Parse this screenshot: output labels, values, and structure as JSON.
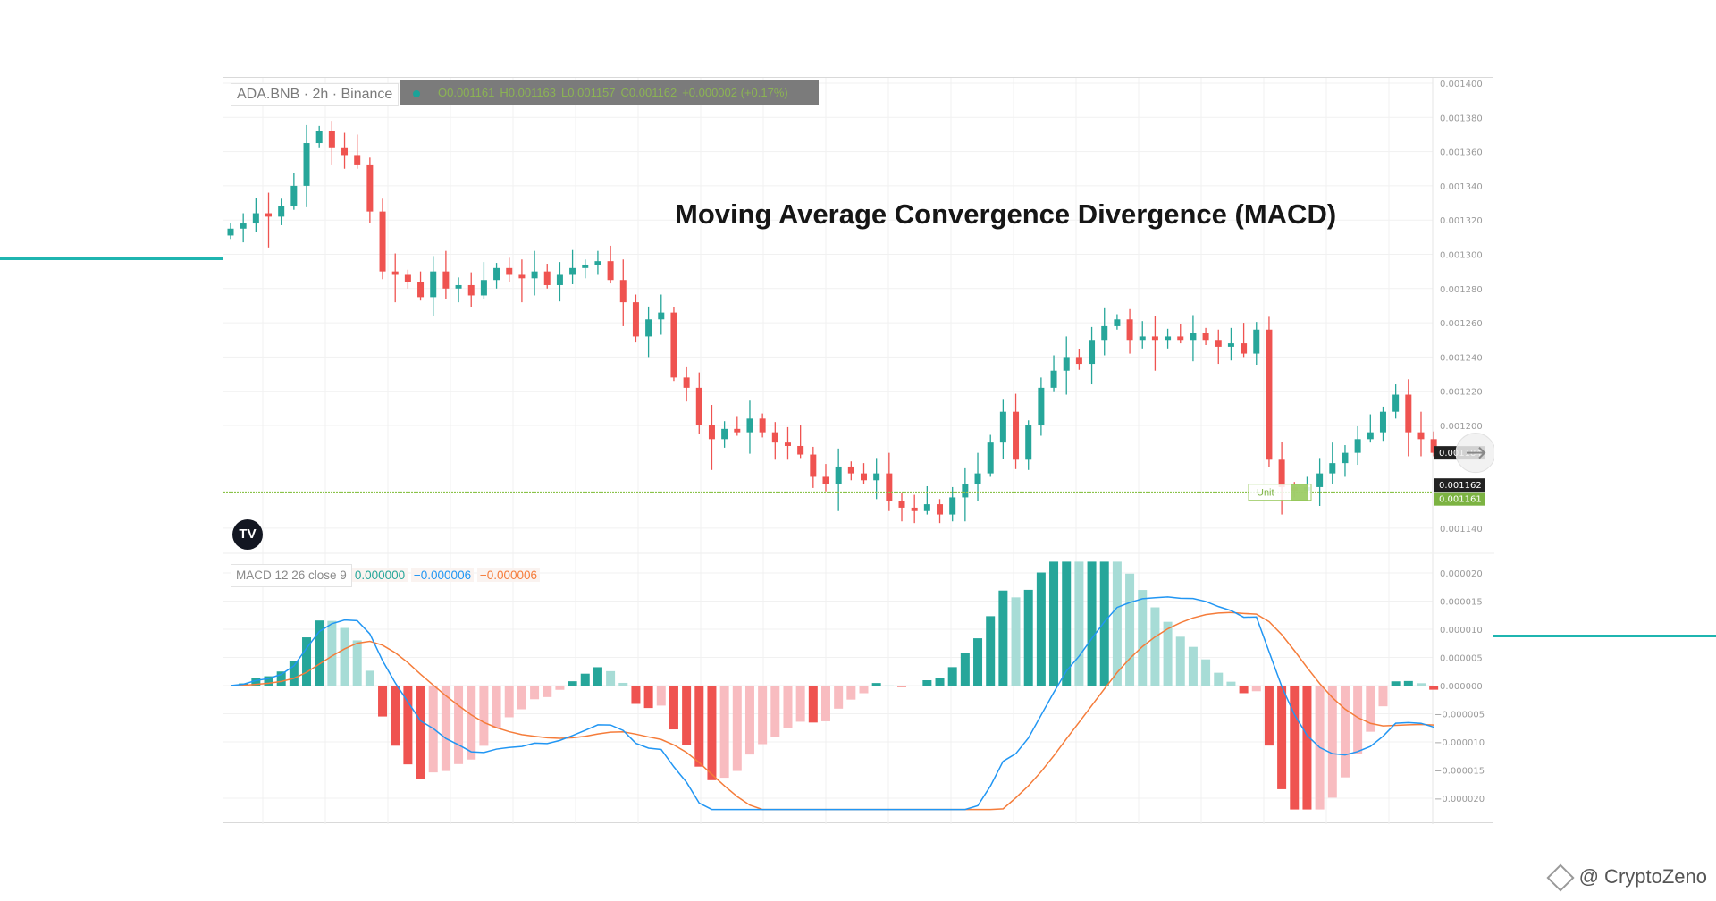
{
  "header": {
    "symbol": "ADA.BNB · 2h · Binance",
    "ohlc": {
      "open": "O0.001161",
      "high": "H0.001163",
      "low": "L0.001157",
      "close": "C0.001162",
      "change": "+0.000002 (+0.17%)"
    }
  },
  "title": "Moving Average Convergence Divergence (MACD)",
  "logo": "TV",
  "macd_legend": {
    "name": "MACD 12 26 close 9",
    "hist": "0.000000",
    "macd": "−0.000006",
    "signal": "−0.000006"
  },
  "price_labels": {
    "current": "0.001184",
    "last": "0.001162",
    "line": "0.001161",
    "unit_tag": "Unit"
  },
  "watermark": "@ CryptoZeno",
  "colors": {
    "up": "#26a69a",
    "down": "#ef5350",
    "macd": "#2196f3",
    "signal": "#f57c3a",
    "hline": "#8bc34a",
    "accent": "#1fb5b0"
  },
  "chart_data": [
    {
      "type": "candlestick",
      "title": "ADA.BNB 2h",
      "ylim": [
        0.00113,
        0.001405
      ],
      "yticks": [
        "0.001400",
        "0.001380",
        "0.001360",
        "0.001340",
        "0.001320",
        "0.001300",
        "0.001280",
        "0.001260",
        "0.001240",
        "0.001220",
        "0.001200",
        "0.001140"
      ],
      "hline": 0.001161,
      "closes": [
        0.001315,
        0.001318,
        0.001324,
        0.001322,
        0.001328,
        0.00134,
        0.001365,
        0.001372,
        0.001362,
        0.001358,
        0.001352,
        0.001325,
        0.00129,
        0.001288,
        0.001284,
        0.001275,
        0.00129,
        0.00128,
        0.001282,
        0.001276,
        0.001285,
        0.001292,
        0.001288,
        0.001286,
        0.00129,
        0.001282,
        0.001288,
        0.001292,
        0.001294,
        0.001296,
        0.001285,
        0.001272,
        0.001252,
        0.001262,
        0.001266,
        0.001228,
        0.001222,
        0.0012,
        0.001192,
        0.001198,
        0.001196,
        0.001204,
        0.001196,
        0.00119,
        0.001188,
        0.001183,
        0.00117,
        0.001166,
        0.001176,
        0.001172,
        0.001168,
        0.001172,
        0.001156,
        0.001152,
        0.00115,
        0.001154,
        0.001148,
        0.001158,
        0.001166,
        0.001172,
        0.00119,
        0.001208,
        0.00118,
        0.0012,
        0.001222,
        0.001232,
        0.00124,
        0.001236,
        0.00125,
        0.001258,
        0.001262,
        0.00125,
        0.001252,
        0.00125,
        0.001252,
        0.00125,
        0.001254,
        0.00125,
        0.001246,
        0.001248,
        0.001242,
        0.001256,
        0.00118,
        0.001164,
        0.001162,
        0.001164,
        0.001172,
        0.001178,
        0.001184,
        0.001192,
        0.001196,
        0.001208,
        0.001218,
        0.001196,
        0.001192,
        0.001184
      ]
    },
    {
      "type": "macd",
      "params": {
        "fast": 12,
        "slow": 26,
        "signal": 9,
        "source": "close"
      },
      "ylim": [
        -2.2e-05,
        2.2e-05
      ],
      "yticks": [
        "0.000020",
        "0.000015",
        "0.000010",
        "0.000005",
        "0.000000",
        "−0.000005",
        "−0.000010",
        "−0.000015",
        "−0.000020"
      ]
    }
  ]
}
